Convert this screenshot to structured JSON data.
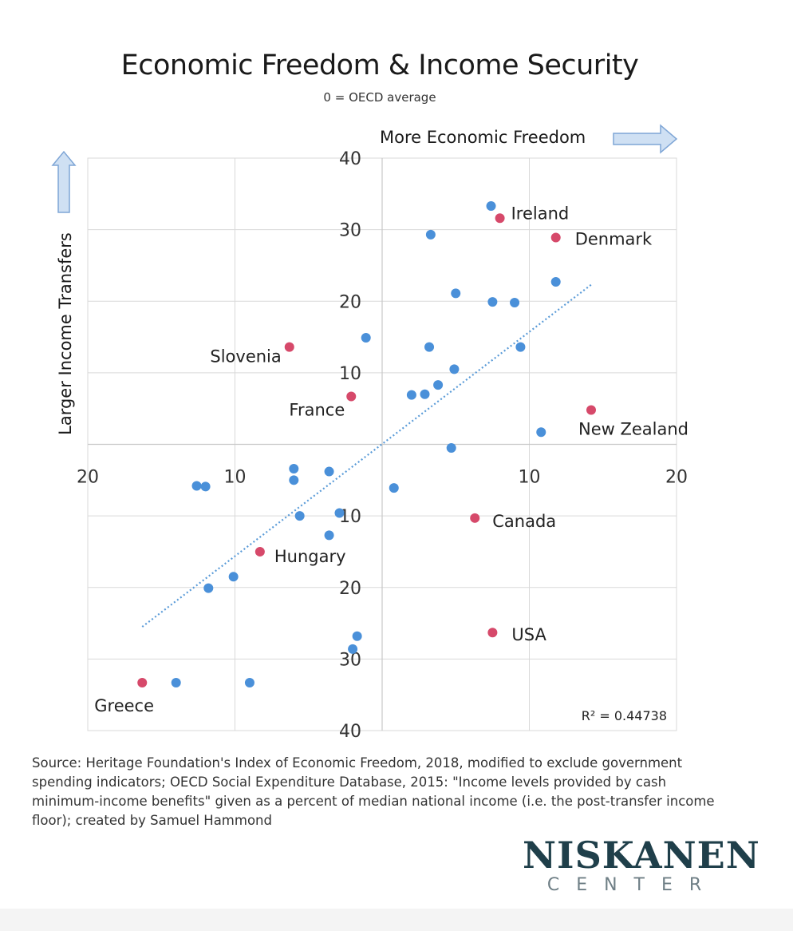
{
  "chart_data": {
    "type": "scatter",
    "title": "Economic Freedom & Income Security",
    "subtitle": "0 = OECD average",
    "xlabel": "More Economic Freedom",
    "ylabel": "Larger Income Transfers",
    "xlim": [
      -20,
      20
    ],
    "ylim": [
      -40,
      40
    ],
    "x_tick_labels": [
      {
        "value": -20,
        "label": "20"
      },
      {
        "value": -10,
        "label": "10"
      },
      {
        "value": 10,
        "label": "10"
      },
      {
        "value": 20,
        "label": "20"
      }
    ],
    "y_tick_labels": [
      {
        "value": 40,
        "label": "40"
      },
      {
        "value": 30,
        "label": "30"
      },
      {
        "value": 20,
        "label": "20"
      },
      {
        "value": 10,
        "label": "10"
      },
      {
        "value": -10,
        "label": "10"
      },
      {
        "value": -20,
        "label": "20"
      },
      {
        "value": -30,
        "label": "30"
      },
      {
        "value": -40,
        "label": "40"
      }
    ],
    "grid": true,
    "trendline": {
      "style": "dotted",
      "x": [
        -16.3,
        14.2
      ],
      "y": [
        -25.5,
        22.3
      ]
    },
    "r_squared_label": "R² = 0.44738",
    "highlight_color": "#d6496a",
    "point_color": "#4a90d9",
    "trend_color": "#5a9bd8",
    "labeled_points": [
      {
        "name": "Ireland",
        "x": 8.0,
        "y": 31.6
      },
      {
        "name": "Denmark",
        "x": 11.8,
        "y": 28.9
      },
      {
        "name": "Slovenia",
        "x": -6.3,
        "y": 13.6
      },
      {
        "name": "France",
        "x": -2.1,
        "y": 6.7
      },
      {
        "name": "New Zealand",
        "x": 14.2,
        "y": 4.8
      },
      {
        "name": "Canada",
        "x": 6.3,
        "y": -10.3
      },
      {
        "name": "Hungary",
        "x": -8.3,
        "y": -15.0
      },
      {
        "name": "USA",
        "x": 7.5,
        "y": -26.3
      },
      {
        "name": "Greece",
        "x": -16.3,
        "y": -33.3
      }
    ],
    "other_points": [
      {
        "x": 7.4,
        "y": 33.3
      },
      {
        "x": 3.3,
        "y": 29.3
      },
      {
        "x": 11.8,
        "y": 22.7
      },
      {
        "x": 5.0,
        "y": 21.1
      },
      {
        "x": 7.5,
        "y": 19.9
      },
      {
        "x": 9.0,
        "y": 19.8
      },
      {
        "x": -1.1,
        "y": 14.9
      },
      {
        "x": 3.2,
        "y": 13.6
      },
      {
        "x": 9.4,
        "y": 13.6
      },
      {
        "x": 4.9,
        "y": 10.5
      },
      {
        "x": 3.8,
        "y": 8.3
      },
      {
        "x": 2.9,
        "y": 7.0
      },
      {
        "x": 2.0,
        "y": 6.9
      },
      {
        "x": 10.8,
        "y": 1.7
      },
      {
        "x": 4.7,
        "y": -0.5
      },
      {
        "x": -6.0,
        "y": -3.4
      },
      {
        "x": -6.0,
        "y": -5.0
      },
      {
        "x": -3.6,
        "y": -3.8
      },
      {
        "x": -12.6,
        "y": -5.8
      },
      {
        "x": -12.0,
        "y": -5.9
      },
      {
        "x": 0.8,
        "y": -6.1
      },
      {
        "x": -2.9,
        "y": -9.6
      },
      {
        "x": -5.6,
        "y": -10.0
      },
      {
        "x": -3.6,
        "y": -12.7
      },
      {
        "x": -10.1,
        "y": -18.5
      },
      {
        "x": -11.8,
        "y": -20.1
      },
      {
        "x": -1.7,
        "y": -26.8
      },
      {
        "x": -2.0,
        "y": -28.6
      },
      {
        "x": -14.0,
        "y": -33.3
      },
      {
        "x": -9.0,
        "y": -33.3
      }
    ]
  },
  "source_text": "Source: Heritage Foundation's Index of Economic Freedom, 2018, modified to exclude government spending indicators; OECD Social Expenditure Database, 2015: \"Income levels provided by cash minimum-income benefits\" given as a percent of median national income (i.e. the post-transfer income floor); created by Samuel Hammond",
  "logo": {
    "name": "NISKANEN",
    "sub": "CENTER"
  }
}
